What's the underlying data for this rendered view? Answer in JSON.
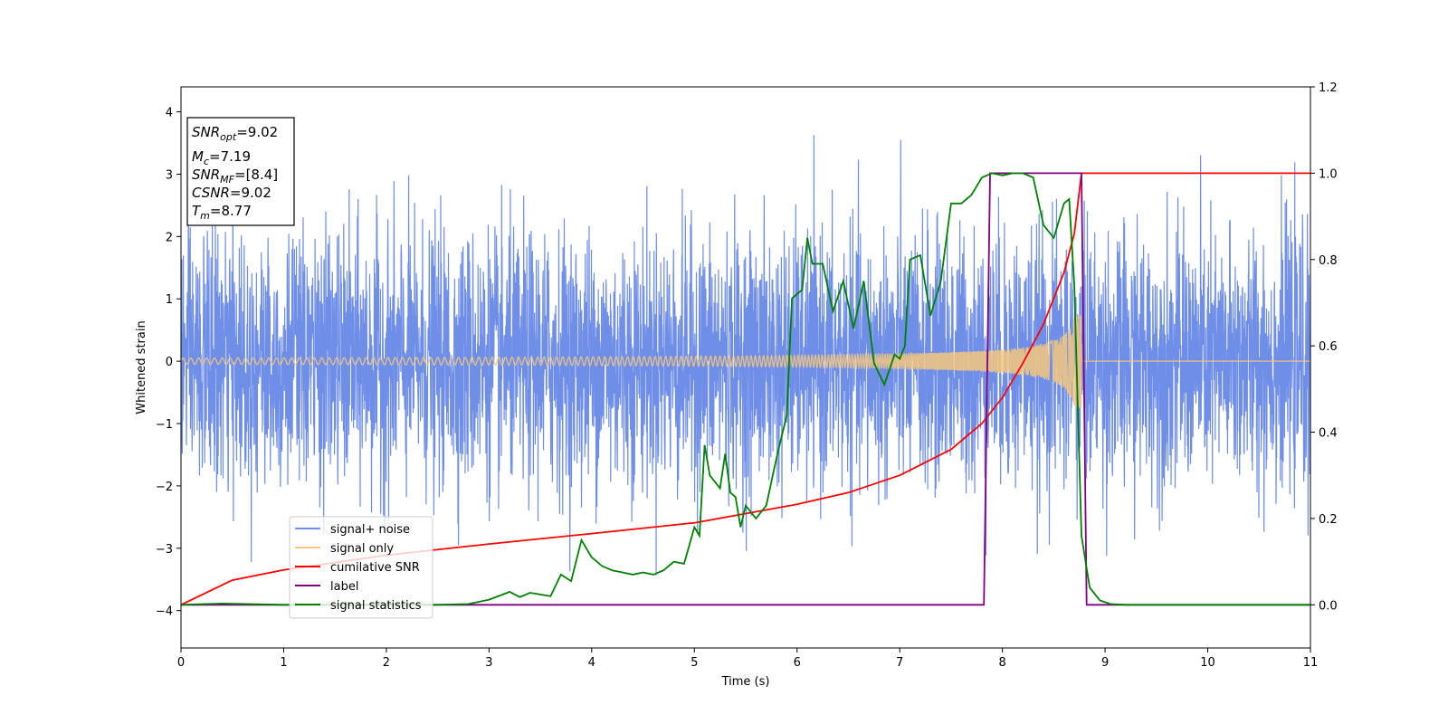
{
  "chart_data": {
    "type": "line",
    "xlabel": "Time (s)",
    "ylabel": "Whitened strain",
    "xlim": [
      0,
      11
    ],
    "ylim": [
      -4.6,
      4.4
    ],
    "y2lim": [
      -0.1,
      1.2
    ],
    "x_ticks": [
      "0",
      "1",
      "2",
      "3",
      "4",
      "5",
      "6",
      "7",
      "8",
      "9",
      "10",
      "11"
    ],
    "y_ticks": [
      "4",
      "3",
      "2",
      "1",
      "0",
      "−1",
      "−2",
      "−3",
      "−4"
    ],
    "y2_ticks": [
      "1.2",
      "1.0",
      "0.8",
      "0.6",
      "0.4",
      "0.2",
      "0.0"
    ],
    "grid": false,
    "legend_position": "lower-left",
    "info_box": {
      "snr_opt": {
        "base": "SNR",
        "sub": "opt",
        "value": "=9.02"
      },
      "mc": {
        "base": "M",
        "sub": "c",
        "value": "=7.19"
      },
      "snr_mf": {
        "base": "SNR",
        "sub": "MF",
        "value": "=[8.4]"
      },
      "csnr": {
        "base": "CSNR",
        "sub": "",
        "value": "=9.02"
      },
      "tm": {
        "base": "T",
        "sub": "m",
        "value": "=8.77"
      }
    },
    "series": [
      {
        "name": "signal+ noise",
        "color": "#6f8ee8",
        "axis": "left",
        "kind": "noise",
        "noise_sigma": 1.0,
        "range": [
          0,
          11
        ]
      },
      {
        "name": "signal only",
        "color": "#f5c77e",
        "axis": "left",
        "kind": "chirp",
        "merger_time": 8.77,
        "start_amplitude": 0.05,
        "peak_amplitude": 0.75
      },
      {
        "name": "cumilative SNR",
        "color": "#ff0000",
        "axis": "right",
        "x": [
          0,
          0.5,
          1,
          2,
          3,
          4,
          5,
          6,
          6.5,
          7,
          7.5,
          7.8,
          8.0,
          8.2,
          8.4,
          8.6,
          8.7,
          8.77,
          11
        ],
        "y": [
          0.0,
          0.057,
          0.081,
          0.115,
          0.141,
          0.165,
          0.19,
          0.233,
          0.26,
          0.3,
          0.36,
          0.42,
          0.48,
          0.56,
          0.65,
          0.77,
          0.86,
          1.0,
          1.0
        ]
      },
      {
        "name": "label",
        "color": "#800080",
        "axis": "right",
        "x": [
          0,
          7.82,
          7.88,
          8.77,
          8.82,
          11
        ],
        "y": [
          0,
          0,
          1,
          1,
          0,
          0
        ]
      },
      {
        "name": "signal statistics",
        "color": "#008000",
        "axis": "right",
        "x": [
          0,
          0.4,
          1,
          2,
          2.5,
          2.8,
          3.0,
          3.2,
          3.3,
          3.4,
          3.6,
          3.7,
          3.8,
          3.9,
          4.0,
          4.1,
          4.2,
          4.3,
          4.4,
          4.5,
          4.6,
          4.7,
          4.8,
          4.9,
          5.0,
          5.05,
          5.1,
          5.15,
          5.25,
          5.3,
          5.35,
          5.4,
          5.45,
          5.5,
          5.6,
          5.7,
          5.8,
          5.9,
          5.95,
          6.05,
          6.1,
          6.15,
          6.25,
          6.35,
          6.45,
          6.55,
          6.65,
          6.75,
          6.85,
          6.95,
          7.0,
          7.05,
          7.1,
          7.2,
          7.3,
          7.4,
          7.5,
          7.6,
          7.7,
          7.8,
          7.9,
          8.0,
          8.1,
          8.2,
          8.3,
          8.4,
          8.5,
          8.6,
          8.65,
          8.7,
          8.77,
          8.85,
          8.95,
          9.05,
          9.2,
          9.5,
          11
        ],
        "y": [
          0.0,
          0.003,
          0.0,
          0.0,
          0.0,
          0.002,
          0.012,
          0.03,
          0.018,
          0.028,
          0.02,
          0.07,
          0.055,
          0.15,
          0.11,
          0.09,
          0.08,
          0.075,
          0.07,
          0.075,
          0.07,
          0.08,
          0.1,
          0.095,
          0.18,
          0.16,
          0.37,
          0.3,
          0.27,
          0.35,
          0.26,
          0.25,
          0.18,
          0.23,
          0.2,
          0.23,
          0.34,
          0.44,
          0.71,
          0.73,
          0.85,
          0.79,
          0.79,
          0.68,
          0.75,
          0.64,
          0.75,
          0.56,
          0.51,
          0.58,
          0.57,
          0.6,
          0.8,
          0.81,
          0.67,
          0.75,
          0.93,
          0.93,
          0.95,
          0.99,
          1.0,
          0.995,
          1.0,
          1.0,
          0.99,
          0.88,
          0.85,
          0.93,
          0.94,
          0.74,
          0.16,
          0.04,
          0.01,
          0.002,
          0.0,
          0.0,
          0.0
        ]
      }
    ]
  }
}
